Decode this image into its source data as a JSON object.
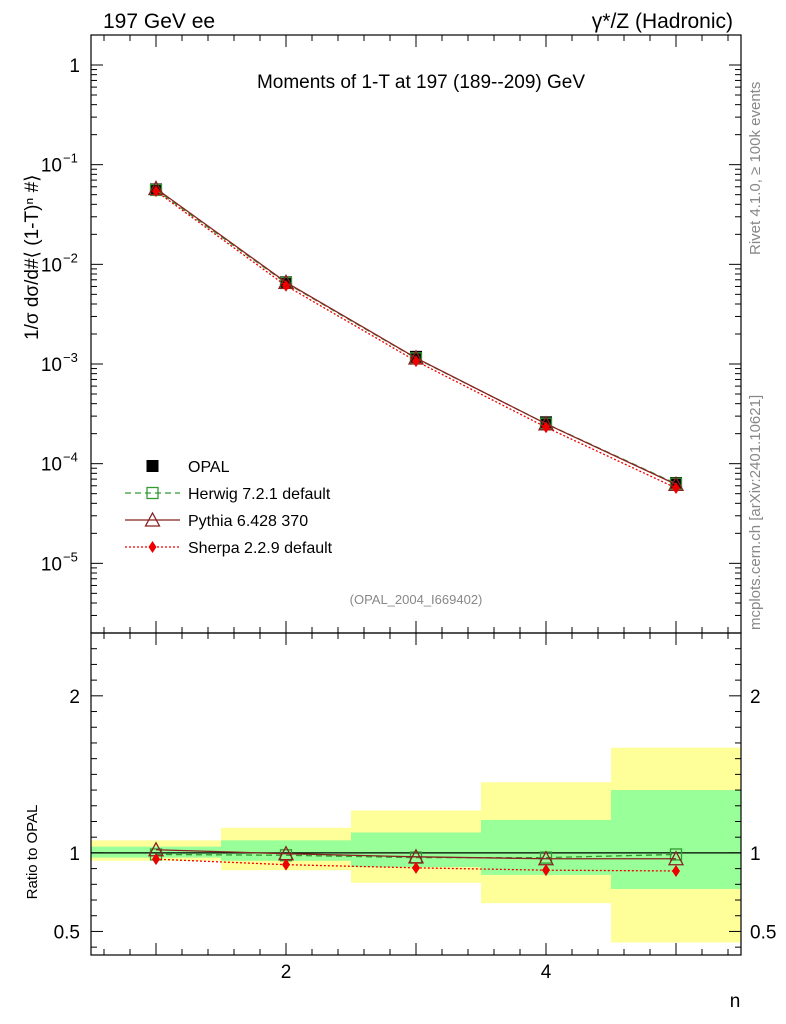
{
  "header": {
    "left": "197 GeV ee",
    "right": "γ*/Z (Hadronic)"
  },
  "side_text": {
    "rivet": "Rivet 4.1.0, ≥ 100k events",
    "mcplots": "mcplots.cern.ch [arXiv:2401.10621]"
  },
  "chart_data": {
    "type": "line",
    "title": "Moments of 1-T at 197 (189--209) GeV",
    "watermark": "(OPAL_2004_I669402)",
    "ylabel": "1/σ  dσ/d#⟨ (1-T)ⁿ #⟩",
    "xlabel": "n",
    "ratio_ylabel": "Ratio to OPAL",
    "xlim": [
      0.5,
      5.5
    ],
    "main": {
      "yscale": "log",
      "ylim": [
        2e-06,
        2
      ],
      "x": [
        1,
        2,
        3,
        4,
        5
      ],
      "series": [
        {
          "name": "OPAL",
          "color": "#000000",
          "marker": "square-filled",
          "line": "none",
          "values": [
            0.0565,
            0.0066,
            0.00118,
            0.00026,
            6.4e-05
          ]
        },
        {
          "name": "Herwig 7.2.1 default",
          "color": "#339933",
          "marker": "square-open",
          "line": "dashed",
          "values": [
            0.0558,
            0.0065,
            0.00114,
            0.000252,
            6.3e-05
          ]
        },
        {
          "name": "Pythia 6.428 370",
          "color": "#882222",
          "marker": "triangle-open",
          "line": "solid",
          "values": [
            0.0577,
            0.0066,
            0.00115,
            0.000251,
            6.2e-05
          ]
        },
        {
          "name": "Sherpa 2.2.9 default",
          "color": "#ee0000",
          "marker": "diamond-filled",
          "line": "dotted",
          "values": [
            0.0543,
            0.0061,
            0.00107,
            0.000232,
            5.7e-05
          ]
        }
      ]
    },
    "ratio": {
      "ylim": [
        0.35,
        2.4
      ],
      "yticks": [
        0.5,
        1,
        2
      ],
      "xticks": [
        2,
        4
      ],
      "bands": [
        {
          "xlo": 0.5,
          "xhi": 1.5,
          "green": [
            0.97,
            1.04
          ],
          "yellow": [
            0.95,
            1.08
          ]
        },
        {
          "xlo": 1.5,
          "xhi": 2.5,
          "green": [
            0.95,
            1.08
          ],
          "yellow": [
            0.89,
            1.16
          ]
        },
        {
          "xlo": 2.5,
          "xhi": 3.5,
          "green": [
            0.91,
            1.13
          ],
          "yellow": [
            0.81,
            1.27
          ]
        },
        {
          "xlo": 3.5,
          "xhi": 4.5,
          "green": [
            0.86,
            1.21
          ],
          "yellow": [
            0.68,
            1.45
          ]
        },
        {
          "xlo": 4.5,
          "xhi": 5.5,
          "green": [
            0.77,
            1.4
          ],
          "yellow": [
            0.43,
            1.67
          ]
        }
      ],
      "series": [
        {
          "name": "Herwig 7.2.1 default",
          "values": [
            0.99,
            0.985,
            0.97,
            0.97,
            0.99
          ]
        },
        {
          "name": "Pythia 6.428 370",
          "values": [
            1.02,
            0.995,
            0.975,
            0.963,
            0.963
          ]
        },
        {
          "name": "Sherpa 2.2.9 default",
          "values": [
            0.96,
            0.925,
            0.905,
            0.89,
            0.885
          ]
        }
      ]
    },
    "main_yticks": [
      {
        "value": 1,
        "base": "1",
        "exp": ""
      },
      {
        "value": 0.1,
        "base": "10",
        "exp": "−1"
      },
      {
        "value": 0.01,
        "base": "10",
        "exp": "−2"
      },
      {
        "value": 0.001,
        "base": "10",
        "exp": "−3"
      },
      {
        "value": 0.0001,
        "base": "10",
        "exp": "−4"
      },
      {
        "value": 1e-05,
        "base": "10",
        "exp": "−5"
      }
    ]
  }
}
